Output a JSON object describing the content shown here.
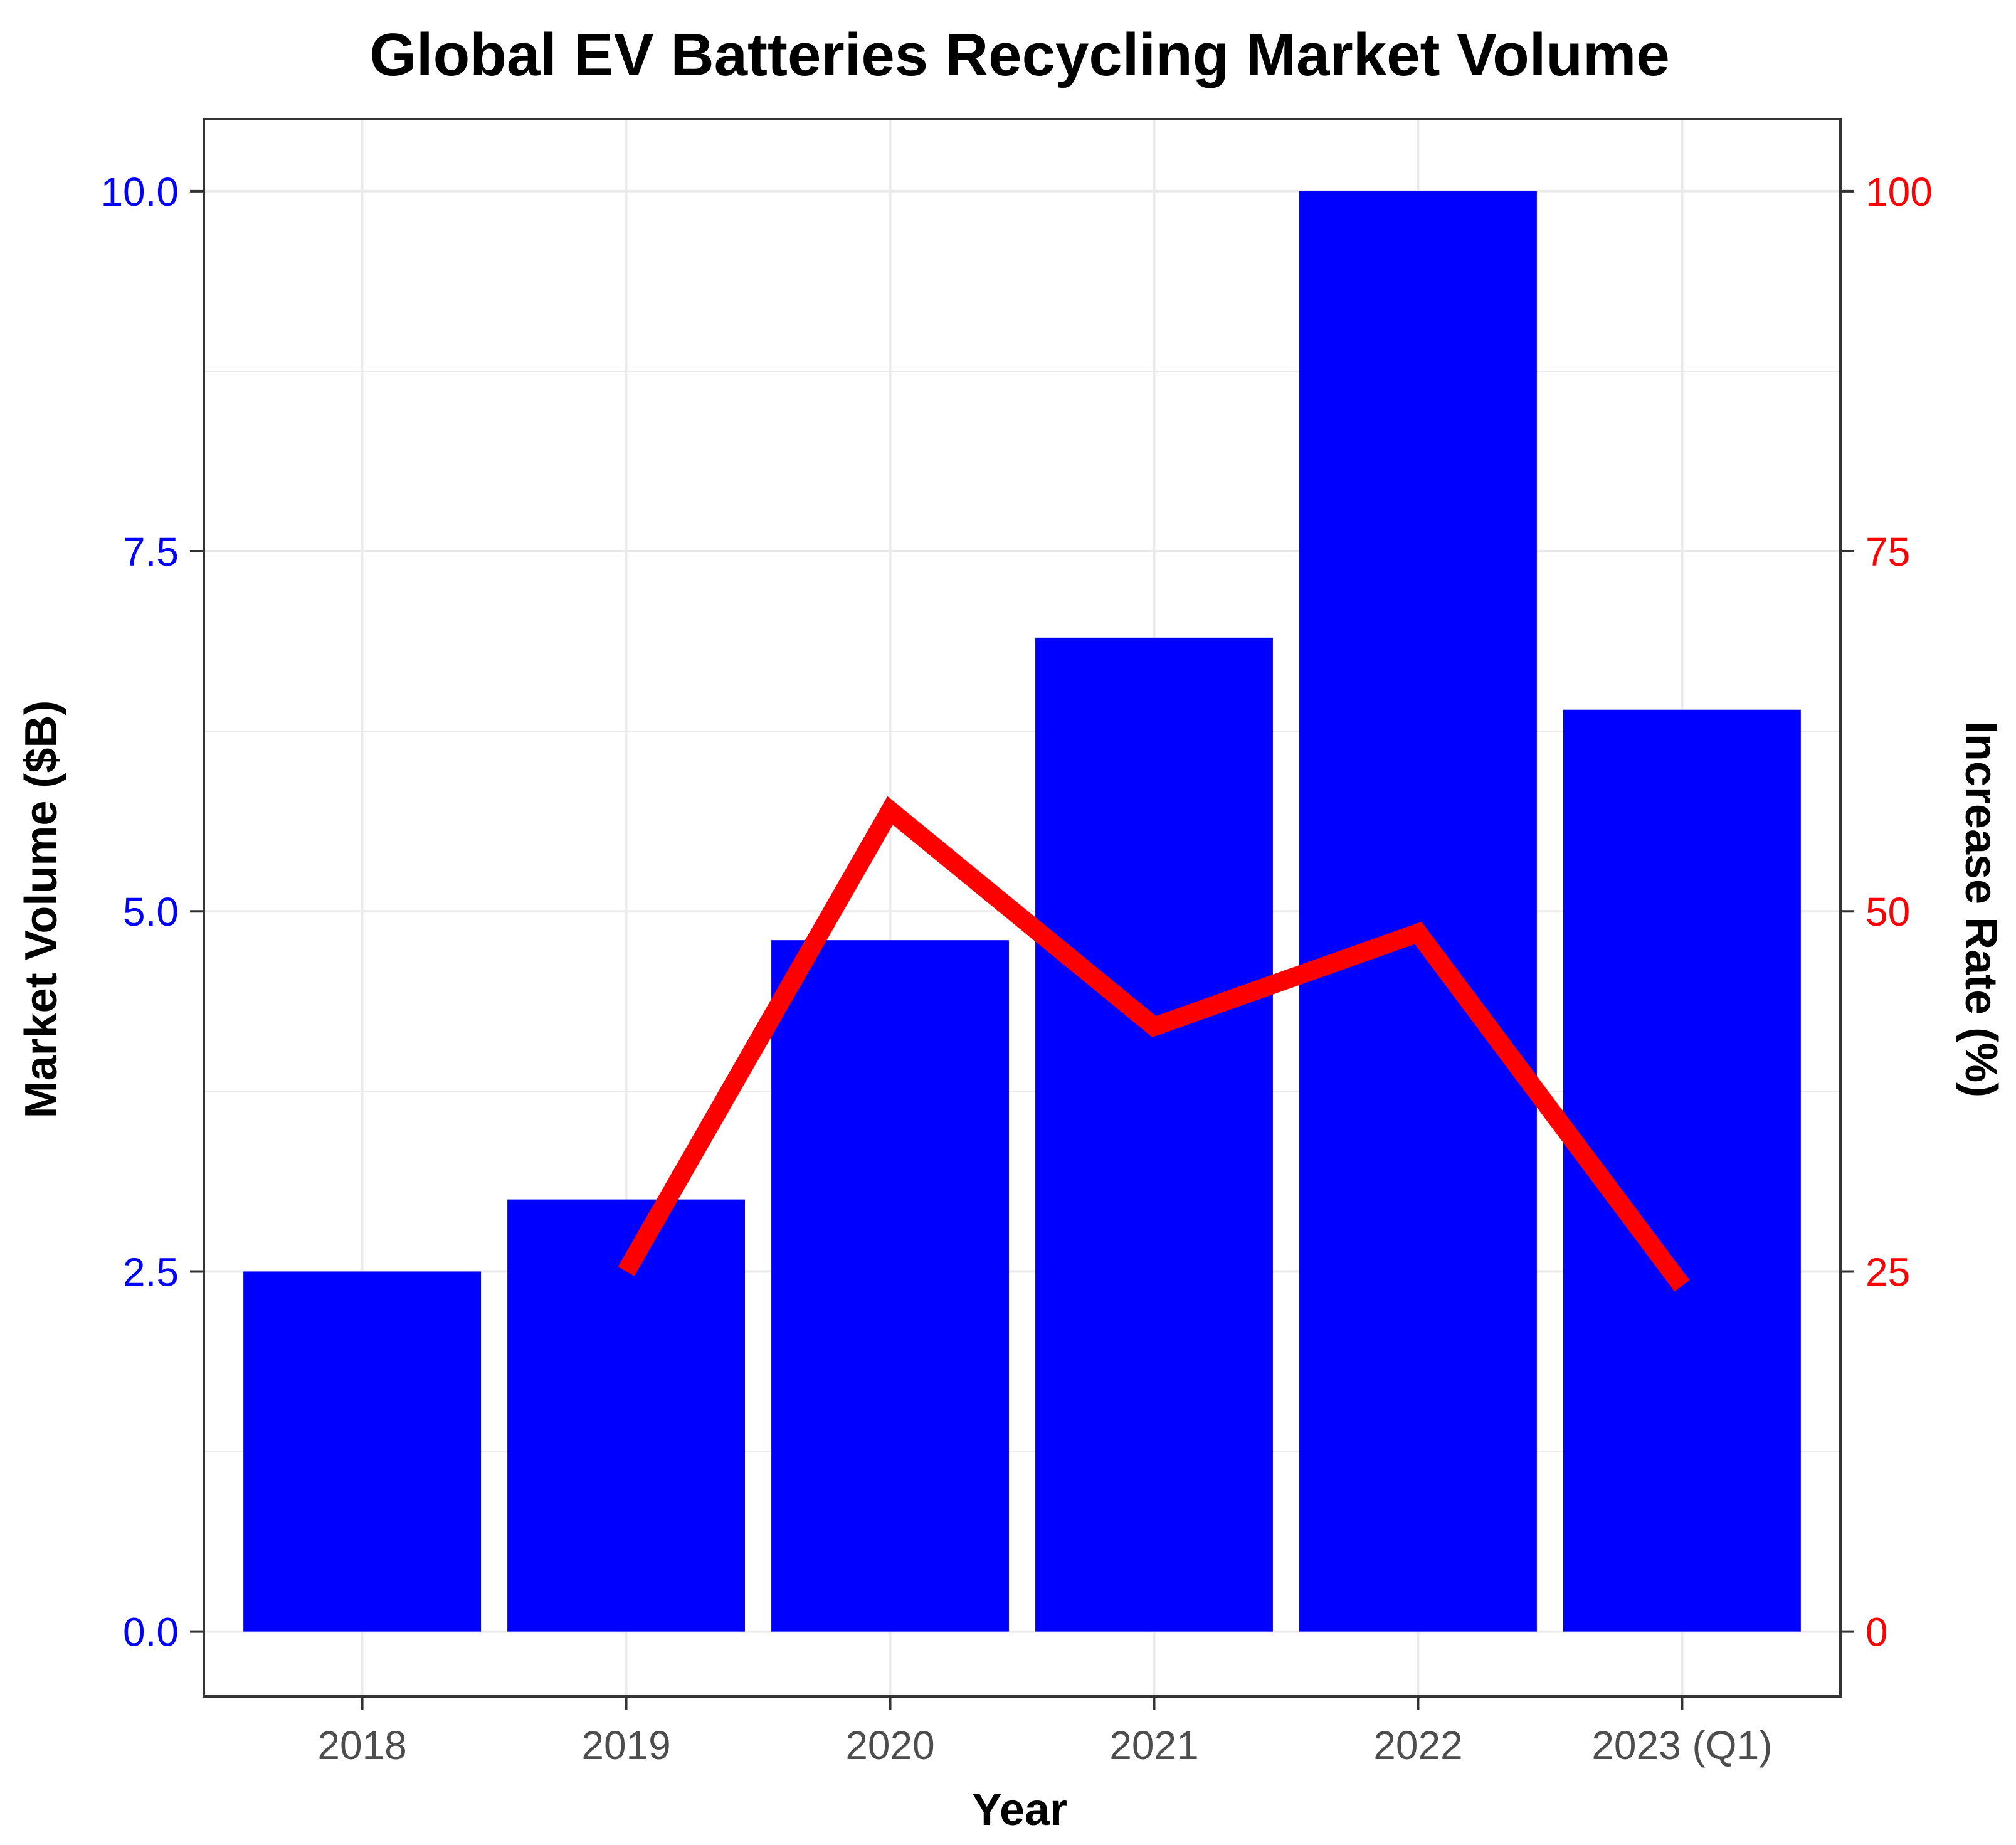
{
  "chart_data": {
    "type": "bar",
    "title": "Global EV Batteries Recycling Market Volume",
    "xlabel": "Year",
    "ylabel": "Market Volume ($B)",
    "y2label": "Increase Rate (%)",
    "categories": [
      "2018",
      "2019",
      "2020",
      "2021",
      "2022",
      "2023 (Q1)"
    ],
    "series": [
      {
        "name": "Market Volume ($B)",
        "type": "bar",
        "axis": "left",
        "color": "#0000ff",
        "values": [
          2.5,
          3.0,
          4.8,
          6.9,
          10.0,
          6.4
        ]
      },
      {
        "name": "Increase Rate (%)",
        "type": "line",
        "axis": "right",
        "color": "#ff0000",
        "values": [
          null,
          25,
          57,
          42,
          48.5,
          24
        ]
      }
    ],
    "ylim": [
      -0.45,
      10.5
    ],
    "y2lim": [
      -4.5,
      105
    ],
    "yticks": [
      "0.0",
      "2.5",
      "5.0",
      "7.5",
      "10.0"
    ],
    "y2ticks": [
      "0",
      "25",
      "50",
      "75",
      "100"
    ],
    "ytick_color": "#0000ff",
    "y2tick_color": "#ff0000",
    "grid": true,
    "legend": "none"
  }
}
